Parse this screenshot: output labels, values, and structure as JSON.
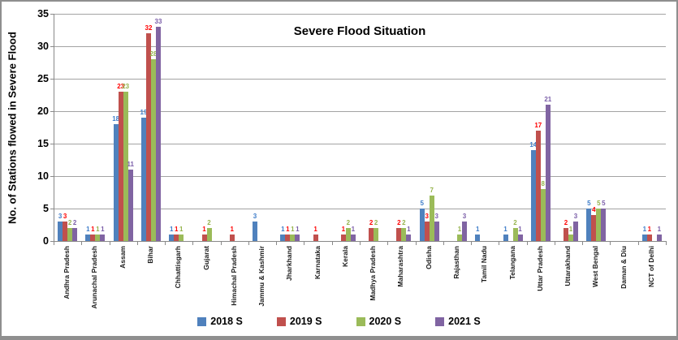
{
  "frame": {
    "border_color": "#8f8f8f",
    "background": "#ffffff"
  },
  "chart_data": {
    "type": "bar",
    "title": "Severe Flood Situation",
    "ylabel": "No. of Stations flowed  in Severe Flood",
    "xlabel": "",
    "ylim": [
      0,
      35
    ],
    "ytick_step": 5,
    "yticks": [
      0,
      5,
      10,
      15,
      20,
      25,
      30,
      35
    ],
    "grid": true,
    "grid_color": "#a3a3a3",
    "axis_color": "#898989",
    "legend_position": "bottom",
    "data_labels": true,
    "categories": [
      "Andhra Pradesh",
      "Arunachal Pradesh",
      "Assam",
      "Bihar",
      "Chhattisgarh",
      "Gujarat",
      "Himachal Pradesh",
      "Jammu & Kashmir",
      "Jharkhand",
      "Karnataka",
      "Kerala",
      "Madhya Pradesh",
      "Maharashtra",
      "Odisha",
      "Rajasthan",
      "Tamil Nadu",
      "Telangana",
      "Uttar Pradesh",
      "Uttarakhand",
      "West Bengal",
      "Daman & Diu",
      "NCT of Delhi"
    ],
    "series": [
      {
        "name": "2018 S",
        "color": "#4F81BD",
        "label_color": "#3D7CC9",
        "values": [
          3,
          1,
          18,
          19,
          1,
          0,
          0,
          3,
          1,
          0,
          0,
          0,
          0,
          5,
          0,
          1,
          1,
          14,
          0,
          5,
          0,
          1
        ]
      },
      {
        "name": "2019 S",
        "color": "#C0504D",
        "label_color": "#FF0000",
        "values": [
          3,
          1,
          23,
          32,
          1,
          1,
          1,
          0,
          1,
          1,
          1,
          2,
          2,
          3,
          0,
          0,
          0,
          17,
          2,
          4,
          0,
          1
        ]
      },
      {
        "name": "2020 S",
        "color": "#9BBB59",
        "label_color": "#94B24A",
        "values": [
          2,
          1,
          23,
          28,
          1,
          2,
          0,
          0,
          1,
          0,
          2,
          2,
          2,
          7,
          1,
          0,
          2,
          8,
          1,
          5,
          0,
          0
        ]
      },
      {
        "name": "2021 S",
        "color": "#8064A2",
        "label_color": "#7A5DA8",
        "values": [
          2,
          1,
          11,
          33,
          0,
          0,
          0,
          0,
          1,
          0,
          1,
          0,
          1,
          3,
          3,
          0,
          1,
          21,
          3,
          5,
          0,
          1
        ]
      }
    ]
  }
}
